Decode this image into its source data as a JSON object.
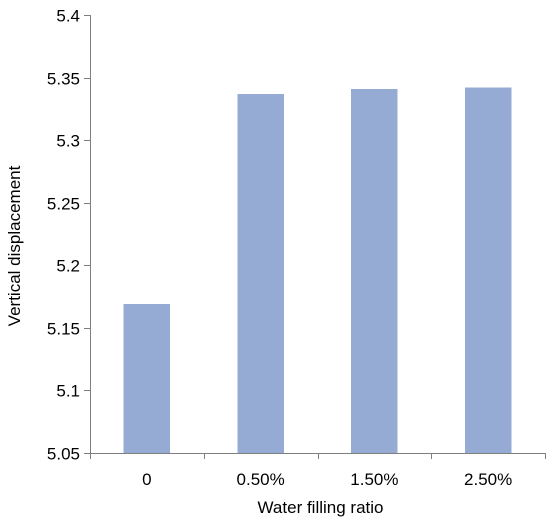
{
  "chart_data": {
    "type": "bar",
    "categories": [
      "0",
      "0.50%",
      "1.50%",
      "2.50%"
    ],
    "values": [
      5.169,
      5.337,
      5.341,
      5.342
    ],
    "title": "",
    "xlabel": "Water filling ratio",
    "ylabel": "Vertical displacement",
    "ylim": [
      5.05,
      5.4
    ],
    "yticks": [
      "5.05",
      "5.1",
      "5.15",
      "5.2",
      "5.25",
      "5.3",
      "5.35",
      "5.4"
    ],
    "bar_color": "#95abd3",
    "axis_color": "#7f7f7f",
    "grid": false,
    "legend": "none"
  }
}
